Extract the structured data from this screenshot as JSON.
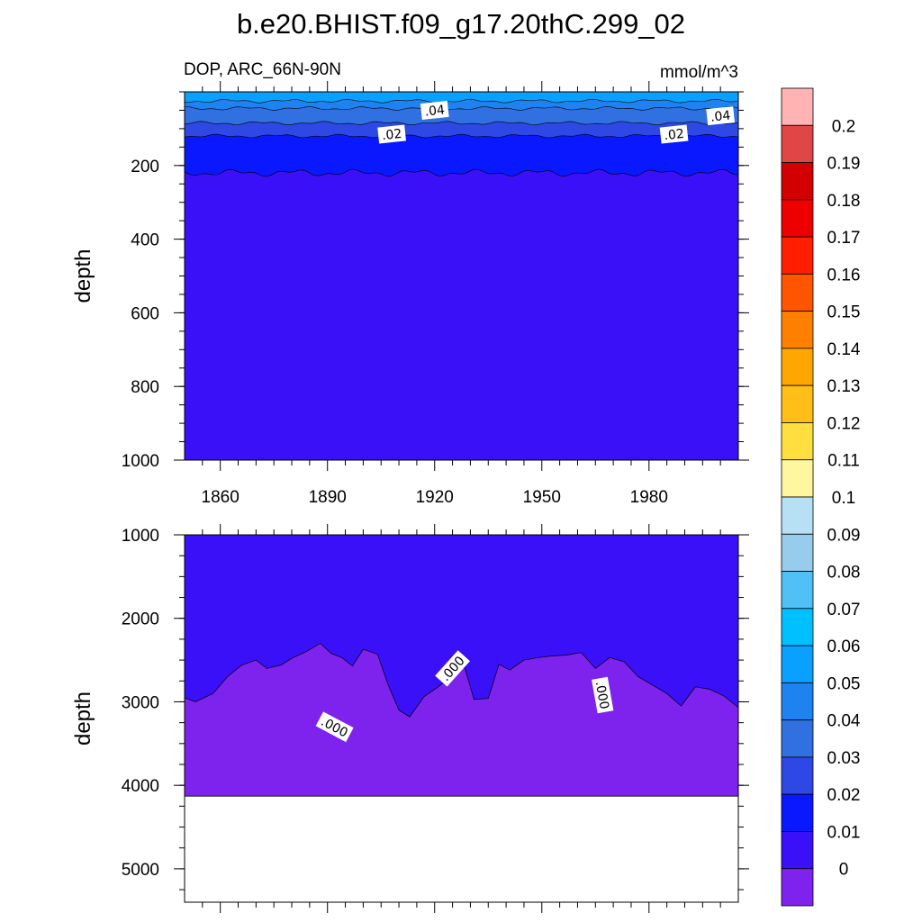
{
  "chart_data": {
    "type": "contour",
    "title": "b.e20.BHIST.f09_g17.20thC.299_02",
    "variable_label": "DOP, ARC_66N-90N",
    "units": "mmol/m^3",
    "x_ticks": [
      "1860",
      "1890",
      "1920",
      "1950",
      "1980"
    ],
    "x_tick_values": [
      1860,
      1890,
      1920,
      1950,
      1980
    ],
    "xlim": [
      1850,
      2005
    ],
    "panels": [
      {
        "name": "upper",
        "ylabel": "depth",
        "ylim": [
          0,
          1000
        ],
        "y_ticks": [
          "200",
          "400",
          "600",
          "800",
          "1000"
        ],
        "y_tick_values": [
          200,
          400,
          600,
          800,
          1000
        ],
        "contour_labels": [
          {
            "text": ".04",
            "x": 1920,
            "depth": 50
          },
          {
            "text": ".04",
            "x": 2000,
            "depth": 65
          },
          {
            "text": ".02",
            "x": 1908,
            "depth": 115
          },
          {
            "text": ".02",
            "x": 1987,
            "depth": 115
          }
        ],
        "bands": [
          {
            "level": "0.05-0.06",
            "top": 0,
            "bottom": 25
          },
          {
            "level": "0.04-0.05",
            "top": 25,
            "bottom": 45
          },
          {
            "level": "0.03-0.04",
            "top": 45,
            "bottom": 85
          },
          {
            "level": "0.02-0.03",
            "top": 85,
            "bottom": 120
          },
          {
            "level": "0.01-0.02",
            "top": 120,
            "bottom": 220
          },
          {
            "level": "0-0.01",
            "top": 220,
            "bottom": 1000
          }
        ]
      },
      {
        "name": "lower",
        "ylabel": "depth",
        "ylim": [
          1000,
          5400
        ],
        "y_ticks": [
          "1000",
          "2000",
          "3000",
          "4000",
          "5000"
        ],
        "y_tick_values": [
          1000,
          2000,
          3000,
          4000,
          5000
        ],
        "seafloor_depth": 4130,
        "contour_labels": [
          {
            "text": ".000",
            "x": 1892,
            "depth": 3300
          },
          {
            "text": ".000",
            "x": 1925,
            "depth": 2600
          },
          {
            "text": ".000",
            "x": 1967,
            "depth": 2920
          }
        ],
        "zero_contour": [
          [
            1850,
            2950
          ],
          [
            1853,
            3000
          ],
          [
            1858,
            2900
          ],
          [
            1862,
            2700
          ],
          [
            1866,
            2560
          ],
          [
            1870,
            2500
          ],
          [
            1873,
            2600
          ],
          [
            1877,
            2560
          ],
          [
            1880,
            2480
          ],
          [
            1884,
            2400
          ],
          [
            1888,
            2300
          ],
          [
            1891,
            2420
          ],
          [
            1894,
            2470
          ],
          [
            1897,
            2570
          ],
          [
            1900,
            2370
          ],
          [
            1904,
            2430
          ],
          [
            1907,
            2800
          ],
          [
            1910,
            3100
          ],
          [
            1913,
            3180
          ],
          [
            1917,
            2940
          ],
          [
            1921,
            2820
          ],
          [
            1925,
            2680
          ],
          [
            1928,
            2530
          ],
          [
            1931,
            2970
          ],
          [
            1935,
            2960
          ],
          [
            1938,
            2550
          ],
          [
            1941,
            2620
          ],
          [
            1945,
            2500
          ],
          [
            1949,
            2470
          ],
          [
            1953,
            2450
          ],
          [
            1957,
            2440
          ],
          [
            1961,
            2410
          ],
          [
            1965,
            2600
          ],
          [
            1969,
            2470
          ],
          [
            1973,
            2520
          ],
          [
            1977,
            2700
          ],
          [
            1981,
            2800
          ],
          [
            1985,
            2900
          ],
          [
            1989,
            3050
          ],
          [
            1993,
            2820
          ],
          [
            1997,
            2850
          ],
          [
            2001,
            2930
          ],
          [
            2005,
            3070
          ]
        ]
      }
    ],
    "colorbar": {
      "labels": [
        "0.2",
        "0.19",
        "0.18",
        "0.17",
        "0.16",
        "0.15",
        "0.14",
        "0.13",
        "0.12",
        "0.11",
        "0.1",
        "0.09",
        "0.08",
        "0.07",
        "0.06",
        "0.05",
        "0.04",
        "0.03",
        "0.02",
        "0.01",
        "0"
      ],
      "colors": [
        "#ffb3b3",
        "#e04646",
        "#d20000",
        "#ee0000",
        "#ff1e00",
        "#ff5500",
        "#ff7f00",
        "#ffa600",
        "#ffbf18",
        "#ffdf40",
        "#fff7a0",
        "#b8e0f4",
        "#98ccec",
        "#50c0f6",
        "#00c0ff",
        "#0aa0ff",
        "#1e82f0",
        "#3070e0",
        "#2e48e6",
        "#0a18ff",
        "#3a10f8",
        "#7e22ee"
      ]
    }
  }
}
